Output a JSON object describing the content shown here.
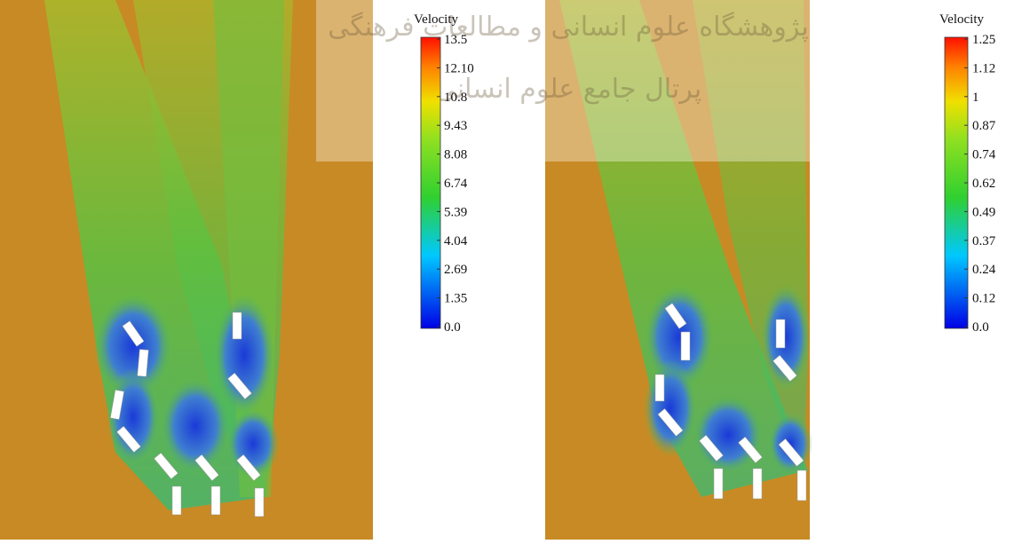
{
  "panels": [
    {
      "colorbar": {
        "title": "Velocity",
        "labels": [
          "13.5",
          "12.10",
          "10.8",
          "9.43",
          "8.08",
          "6.74",
          "5.39",
          "4.04",
          "2.69",
          "1.35",
          "0.0"
        ]
      }
    },
    {
      "colorbar": {
        "title": "Velocity",
        "labels": [
          "1.25",
          "1.12",
          "1",
          "0.87",
          "0.74",
          "0.62",
          "0.49",
          "0.37",
          "0.24",
          "0.12",
          "0.0"
        ]
      }
    }
  ],
  "watermark": {
    "line1": "پژوهشگاه علوم انسانی و مطالعات فرهنگی",
    "line2": "پرتال جامع علوم انسانی"
  }
}
